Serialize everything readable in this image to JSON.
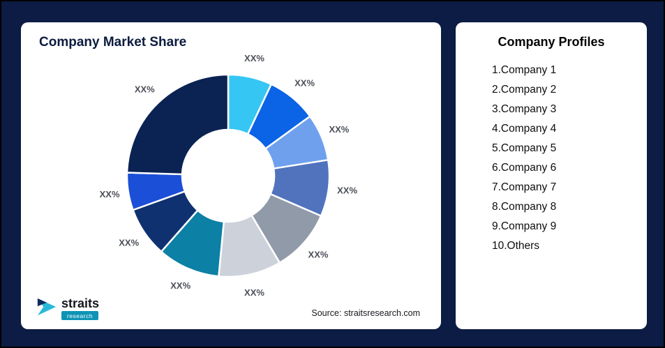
{
  "page": {
    "background_color": "#0D1C44"
  },
  "left_card": {
    "title": "Company Market Share",
    "source": "Source: straitsresearch.com",
    "logo": {
      "main": "straits",
      "sub": "research",
      "icon": "straits-arrow-logo",
      "badge_color": "#0D94B5"
    }
  },
  "right_card": {
    "title": "Company Profiles",
    "items": [
      {
        "label": "1.Company 1"
      },
      {
        "label": "2.Company 2"
      },
      {
        "label": "3.Company 3"
      },
      {
        "label": "4.Company 4"
      },
      {
        "label": "5.Company 5"
      },
      {
        "label": "6.Company 6"
      },
      {
        "label": "7.Company 7"
      },
      {
        "label": "8.Company 8"
      },
      {
        "label": "9.Company 9"
      },
      {
        "label": "10.Others"
      }
    ]
  },
  "chart_data": {
    "type": "pie",
    "subtype": "donut",
    "title": "Company Market Share",
    "legend_position": "right-panel",
    "inner_radius_ratio": 0.455,
    "note_labels": "all slice labels shown as placeholder XX%",
    "segments": [
      {
        "name": "Company 1",
        "label": "XX%",
        "value": 7,
        "color": "#35C6F4"
      },
      {
        "name": "Company 2",
        "label": "XX%",
        "value": 8,
        "color": "#0B63E5"
      },
      {
        "name": "Company 3",
        "label": "XX%",
        "value": 7.5,
        "color": "#6FA0EE"
      },
      {
        "name": "Company 4",
        "label": "XX%",
        "value": 9,
        "color": "#5173BD"
      },
      {
        "name": "Company 5",
        "label": "XX%",
        "value": 10,
        "color": "#909AA9"
      },
      {
        "name": "Company 6",
        "label": "XX%",
        "value": 10,
        "color": "#CDD2DA"
      },
      {
        "name": "Company 7",
        "label": "XX%",
        "value": 10,
        "color": "#0C80A5"
      },
      {
        "name": "Company 8",
        "label": "XX%",
        "value": 8,
        "color": "#0F3170"
      },
      {
        "name": "Company 9",
        "label": "XX%",
        "value": 6,
        "color": "#1C4FD7"
      },
      {
        "name": "Others",
        "label": "XX%",
        "value": 24.5,
        "color": "#0A2353"
      }
    ]
  }
}
